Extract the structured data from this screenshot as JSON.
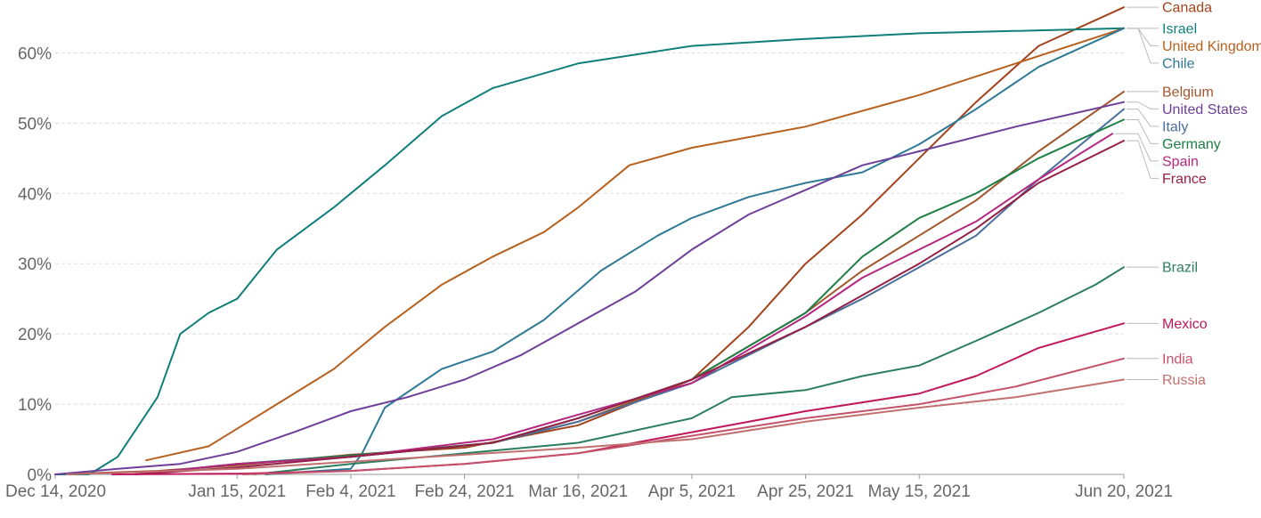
{
  "chart_data": {
    "type": "line",
    "title": "",
    "xlabel": "",
    "ylabel": "",
    "x_range": [
      "2020-12-14",
      "2021-06-20"
    ],
    "ylim": [
      0,
      65
    ],
    "y_ticks": [
      {
        "value": 0,
        "label": "0%"
      },
      {
        "value": 10,
        "label": "10%"
      },
      {
        "value": 20,
        "label": "20%"
      },
      {
        "value": 30,
        "label": "30%"
      },
      {
        "value": 40,
        "label": "40%"
      },
      {
        "value": 50,
        "label": "50%"
      },
      {
        "value": 60,
        "label": "60%"
      }
    ],
    "x_ticks": [
      {
        "value": "2020-12-14",
        "label": "Dec 14, 2020"
      },
      {
        "value": "2021-01-15",
        "label": "Jan 15, 2021"
      },
      {
        "value": "2021-02-04",
        "label": "Feb 4, 2021"
      },
      {
        "value": "2021-02-24",
        "label": "Feb 24, 2021"
      },
      {
        "value": "2021-03-16",
        "label": "Mar 16, 2021"
      },
      {
        "value": "2021-04-05",
        "label": "Apr 5, 2021"
      },
      {
        "value": "2021-04-25",
        "label": "Apr 25, 2021"
      },
      {
        "value": "2021-05-15",
        "label": "May 15, 2021"
      },
      {
        "value": "2021-06-20",
        "label": "Jun 20, 2021"
      }
    ],
    "grid": true,
    "legend_position": "right",
    "series": [
      {
        "name": "Canada",
        "color": "#a2431c",
        "points": [
          [
            "2020-12-14",
            0
          ],
          [
            "2021-01-01",
            0.5
          ],
          [
            "2021-01-15",
            1.3
          ],
          [
            "2021-02-04",
            2.8
          ],
          [
            "2021-02-24",
            3.8
          ],
          [
            "2021-03-16",
            7
          ],
          [
            "2021-04-05",
            13.5
          ],
          [
            "2021-04-15",
            21
          ],
          [
            "2021-04-25",
            30
          ],
          [
            "2021-05-05",
            37
          ],
          [
            "2021-05-15",
            45
          ],
          [
            "2021-05-25",
            53
          ],
          [
            "2021-06-05",
            61
          ],
          [
            "2021-06-20",
            66.5
          ]
        ]
      },
      {
        "name": "Israel",
        "color": "#0f7f7a",
        "points": [
          [
            "2020-12-14",
            0
          ],
          [
            "2020-12-20",
            0
          ],
          [
            "2020-12-25",
            2.5
          ],
          [
            "2021-01-01",
            11
          ],
          [
            "2021-01-05",
            20
          ],
          [
            "2021-01-10",
            23
          ],
          [
            "2021-01-15",
            25
          ],
          [
            "2021-01-22",
            32
          ],
          [
            "2021-02-01",
            38
          ],
          [
            "2021-02-10",
            44
          ],
          [
            "2021-02-20",
            51
          ],
          [
            "2021-03-01",
            55
          ],
          [
            "2021-03-16",
            58.5
          ],
          [
            "2021-04-05",
            61
          ],
          [
            "2021-04-25",
            62
          ],
          [
            "2021-05-15",
            62.8
          ],
          [
            "2021-06-20",
            63.5
          ]
        ]
      },
      {
        "name": "United Kingdom",
        "color": "#b7611f",
        "points": [
          [
            "2020-12-30",
            2
          ],
          [
            "2021-01-10",
            4
          ],
          [
            "2021-01-20",
            9
          ],
          [
            "2021-02-01",
            15
          ],
          [
            "2021-02-10",
            21
          ],
          [
            "2021-02-20",
            27
          ],
          [
            "2021-03-01",
            31
          ],
          [
            "2021-03-10",
            34.5
          ],
          [
            "2021-03-16",
            38
          ],
          [
            "2021-03-25",
            44
          ],
          [
            "2021-04-05",
            46.5
          ],
          [
            "2021-04-25",
            49.5
          ],
          [
            "2021-05-15",
            54
          ],
          [
            "2021-06-01",
            58.5
          ],
          [
            "2021-06-20",
            63.5
          ]
        ]
      },
      {
        "name": "Chile",
        "color": "#2e7a96",
        "points": [
          [
            "2021-01-20",
            0
          ],
          [
            "2021-02-04",
            0.8
          ],
          [
            "2021-02-06",
            3
          ],
          [
            "2021-02-10",
            9.5
          ],
          [
            "2021-02-20",
            15
          ],
          [
            "2021-03-01",
            17.5
          ],
          [
            "2021-03-10",
            22
          ],
          [
            "2021-03-20",
            29
          ],
          [
            "2021-03-30",
            34
          ],
          [
            "2021-04-05",
            36.5
          ],
          [
            "2021-04-15",
            39.5
          ],
          [
            "2021-04-25",
            41.5
          ],
          [
            "2021-05-05",
            43
          ],
          [
            "2021-05-15",
            47
          ],
          [
            "2021-05-25",
            52
          ],
          [
            "2021-06-05",
            58
          ],
          [
            "2021-06-20",
            63.5
          ]
        ]
      },
      {
        "name": "Belgium",
        "color": "#a1562b",
        "points": [
          [
            "2020-12-28",
            0
          ],
          [
            "2021-01-15",
            1.5
          ],
          [
            "2021-02-04",
            2.5
          ],
          [
            "2021-03-01",
            4.5
          ],
          [
            "2021-03-16",
            7.5
          ],
          [
            "2021-04-05",
            13.5
          ],
          [
            "2021-04-25",
            23
          ],
          [
            "2021-05-05",
            29
          ],
          [
            "2021-05-15",
            34
          ],
          [
            "2021-05-25",
            39
          ],
          [
            "2021-06-05",
            46
          ],
          [
            "2021-06-20",
            54.5
          ]
        ]
      },
      {
        "name": "United States",
        "color": "#6e3f98",
        "points": [
          [
            "2020-12-14",
            0
          ],
          [
            "2020-12-25",
            0.8
          ],
          [
            "2021-01-05",
            1.5
          ],
          [
            "2021-01-15",
            3.2
          ],
          [
            "2021-01-25",
            6
          ],
          [
            "2021-02-04",
            9
          ],
          [
            "2021-02-14",
            11
          ],
          [
            "2021-02-24",
            13.5
          ],
          [
            "2021-03-06",
            17
          ],
          [
            "2021-03-16",
            21.5
          ],
          [
            "2021-03-26",
            26
          ],
          [
            "2021-04-05",
            32
          ],
          [
            "2021-04-15",
            37
          ],
          [
            "2021-04-25",
            40.5
          ],
          [
            "2021-05-05",
            44
          ],
          [
            "2021-05-15",
            46
          ],
          [
            "2021-06-01",
            49.5
          ],
          [
            "2021-06-20",
            53
          ]
        ]
      },
      {
        "name": "Italy",
        "color": "#4a6f9a",
        "points": [
          [
            "2020-12-28",
            0
          ],
          [
            "2021-01-15",
            1.5
          ],
          [
            "2021-02-04",
            2.5
          ],
          [
            "2021-03-01",
            4.5
          ],
          [
            "2021-03-16",
            7.5
          ],
          [
            "2021-04-05",
            13
          ],
          [
            "2021-04-25",
            21
          ],
          [
            "2021-05-05",
            25
          ],
          [
            "2021-05-15",
            29.5
          ],
          [
            "2021-05-25",
            34
          ],
          [
            "2021-06-05",
            42
          ],
          [
            "2021-06-20",
            52
          ]
        ]
      },
      {
        "name": "Germany",
        "color": "#1e8046",
        "points": [
          [
            "2020-12-28",
            0
          ],
          [
            "2021-01-15",
            1.5
          ],
          [
            "2021-02-04",
            2.7
          ],
          [
            "2021-03-01",
            4.5
          ],
          [
            "2021-03-16",
            8
          ],
          [
            "2021-04-05",
            13.5
          ],
          [
            "2021-04-25",
            23
          ],
          [
            "2021-05-05",
            31
          ],
          [
            "2021-05-15",
            36.5
          ],
          [
            "2021-05-25",
            40
          ],
          [
            "2021-06-05",
            45
          ],
          [
            "2021-06-20",
            50.5
          ]
        ]
      },
      {
        "name": "Spain",
        "color": "#b4267f",
        "points": [
          [
            "2020-12-28",
            0
          ],
          [
            "2021-01-15",
            1.5
          ],
          [
            "2021-02-04",
            2.5
          ],
          [
            "2021-03-01",
            5
          ],
          [
            "2021-03-16",
            8.5
          ],
          [
            "2021-04-05",
            13
          ],
          [
            "2021-04-25",
            22.5
          ],
          [
            "2021-05-05",
            28
          ],
          [
            "2021-05-15",
            32
          ],
          [
            "2021-05-25",
            36
          ],
          [
            "2021-06-05",
            42
          ],
          [
            "2021-06-18",
            48.5
          ]
        ]
      },
      {
        "name": "France",
        "color": "#941f47",
        "points": [
          [
            "2020-12-28",
            0
          ],
          [
            "2021-01-15",
            1
          ],
          [
            "2021-02-04",
            2.5
          ],
          [
            "2021-03-01",
            4.5
          ],
          [
            "2021-03-16",
            8
          ],
          [
            "2021-04-05",
            13.5
          ],
          [
            "2021-04-25",
            21
          ],
          [
            "2021-05-05",
            25.5
          ],
          [
            "2021-05-15",
            30
          ],
          [
            "2021-05-25",
            35
          ],
          [
            "2021-06-05",
            41.5
          ],
          [
            "2021-06-20",
            47.5
          ]
        ]
      },
      {
        "name": "Brazil",
        "color": "#2a7e5e",
        "points": [
          [
            "2021-01-18",
            0
          ],
          [
            "2021-02-04",
            1.5
          ],
          [
            "2021-02-24",
            3
          ],
          [
            "2021-03-16",
            4.5
          ],
          [
            "2021-04-05",
            8
          ],
          [
            "2021-04-12",
            11
          ],
          [
            "2021-04-25",
            12
          ],
          [
            "2021-05-05",
            14
          ],
          [
            "2021-05-15",
            15.5
          ],
          [
            "2021-05-25",
            19
          ],
          [
            "2021-06-05",
            23
          ],
          [
            "2021-06-15",
            27
          ],
          [
            "2021-06-20",
            29.5
          ]
        ]
      },
      {
        "name": "Mexico",
        "color": "#c1185b",
        "points": [
          [
            "2020-12-24",
            0
          ],
          [
            "2021-01-15",
            0.1
          ],
          [
            "2021-02-04",
            0.5
          ],
          [
            "2021-02-24",
            1.5
          ],
          [
            "2021-03-16",
            3
          ],
          [
            "2021-04-05",
            6
          ],
          [
            "2021-04-25",
            9
          ],
          [
            "2021-05-15",
            11.5
          ],
          [
            "2021-05-25",
            14
          ],
          [
            "2021-06-05",
            18
          ],
          [
            "2021-06-20",
            21.5
          ]
        ]
      },
      {
        "name": "India",
        "color": "#c4526a",
        "points": [
          [
            "2021-01-16",
            0
          ],
          [
            "2021-02-04",
            0.5
          ],
          [
            "2021-02-24",
            1.5
          ],
          [
            "2021-03-16",
            3
          ],
          [
            "2021-04-05",
            5.5
          ],
          [
            "2021-04-25",
            8
          ],
          [
            "2021-05-15",
            10
          ],
          [
            "2021-06-01",
            12.5
          ],
          [
            "2021-06-20",
            16.5
          ]
        ]
      },
      {
        "name": "Russia",
        "color": "#c2706f",
        "points": [
          [
            "2020-12-16",
            0
          ],
          [
            "2021-01-15",
            0.8
          ],
          [
            "2021-02-04",
            1.8
          ],
          [
            "2021-02-24",
            2.8
          ],
          [
            "2021-03-16",
            3.8
          ],
          [
            "2021-04-05",
            5
          ],
          [
            "2021-04-25",
            7.5
          ],
          [
            "2021-05-15",
            9.5
          ],
          [
            "2021-06-01",
            11
          ],
          [
            "2021-06-20",
            13.5
          ]
        ]
      }
    ]
  }
}
